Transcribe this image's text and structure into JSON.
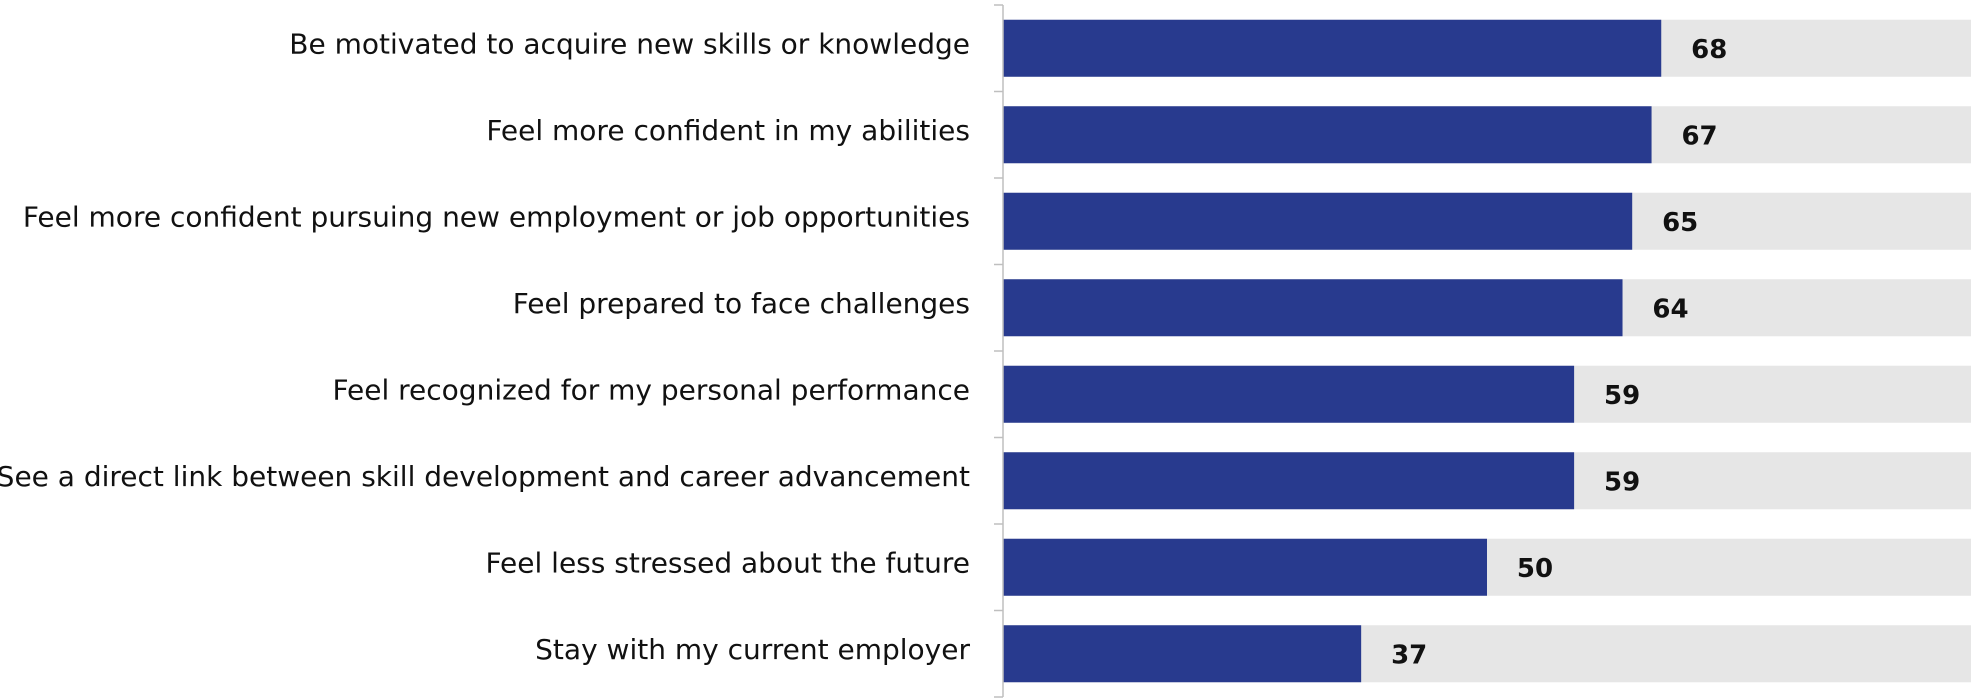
{
  "chart_data": {
    "type": "hbar",
    "categories": [
      "Be motivated to acquire new skills or knowledge",
      "Feel more confident in my abilities",
      "Feel more confident pursuing new employment or job opportunities",
      "Feel prepared to face challenges",
      "Feel recognized for my personal performance",
      "See a direct link between skill development and career advancement",
      "Feel less stressed about the future",
      "Stay with my current employer"
    ],
    "values": [
      68,
      67,
      65,
      64,
      59,
      59,
      50,
      37
    ],
    "color": "#283a8e",
    "track_color": "#e6e6e6",
    "xlim": [
      0,
      100
    ]
  }
}
